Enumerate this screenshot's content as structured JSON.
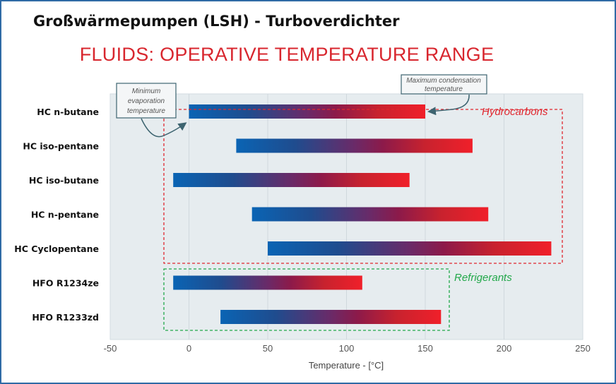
{
  "header": {
    "title": "Großwärmepumpen (LSH) - Turboverdichter"
  },
  "chart_data": {
    "type": "bar",
    "orientation": "horizontal-floating",
    "title": "FLUIDS: OPERATIVE TEMPERATURE RANGE",
    "xlabel": "Temperature - [°C]",
    "xlim": [
      -50,
      250
    ],
    "xticks": [
      -50,
      0,
      50,
      100,
      150,
      200,
      250
    ],
    "grid": true,
    "categories": [
      "HC n-butane",
      "HC iso-pentane",
      "HC iso-butane",
      "HC n-pentane",
      "HC Cyclopentane",
      "HFO R1234ze",
      "HFO R1233zd"
    ],
    "series": [
      {
        "name": "Minimum evaporation temperature",
        "values": [
          0,
          30,
          -10,
          40,
          50,
          -10,
          20
        ]
      },
      {
        "name": "Maximum condensation temperature",
        "values": [
          150,
          180,
          140,
          190,
          230,
          110,
          160
        ]
      }
    ],
    "groups": [
      {
        "label": "Hydrocarbons",
        "members": [
          0,
          1,
          2,
          3,
          4
        ],
        "color": "#e0262e"
      },
      {
        "label": "Refrigerants",
        "members": [
          5,
          6
        ],
        "color": "#22a84a"
      }
    ],
    "annotations": [
      "Minimum evaporation temperature",
      "Maximum condensation temperature"
    ],
    "annotation_lines": {
      "min": [
        "Minimum",
        "evaporation",
        "temperature"
      ],
      "max": [
        "Maximum condensation",
        "temperature"
      ]
    },
    "colors": {
      "cold": "#0a64b4",
      "mid": "#8a1a55",
      "hot": "#f0202a",
      "plot_bg": "#e6ecef"
    }
  }
}
